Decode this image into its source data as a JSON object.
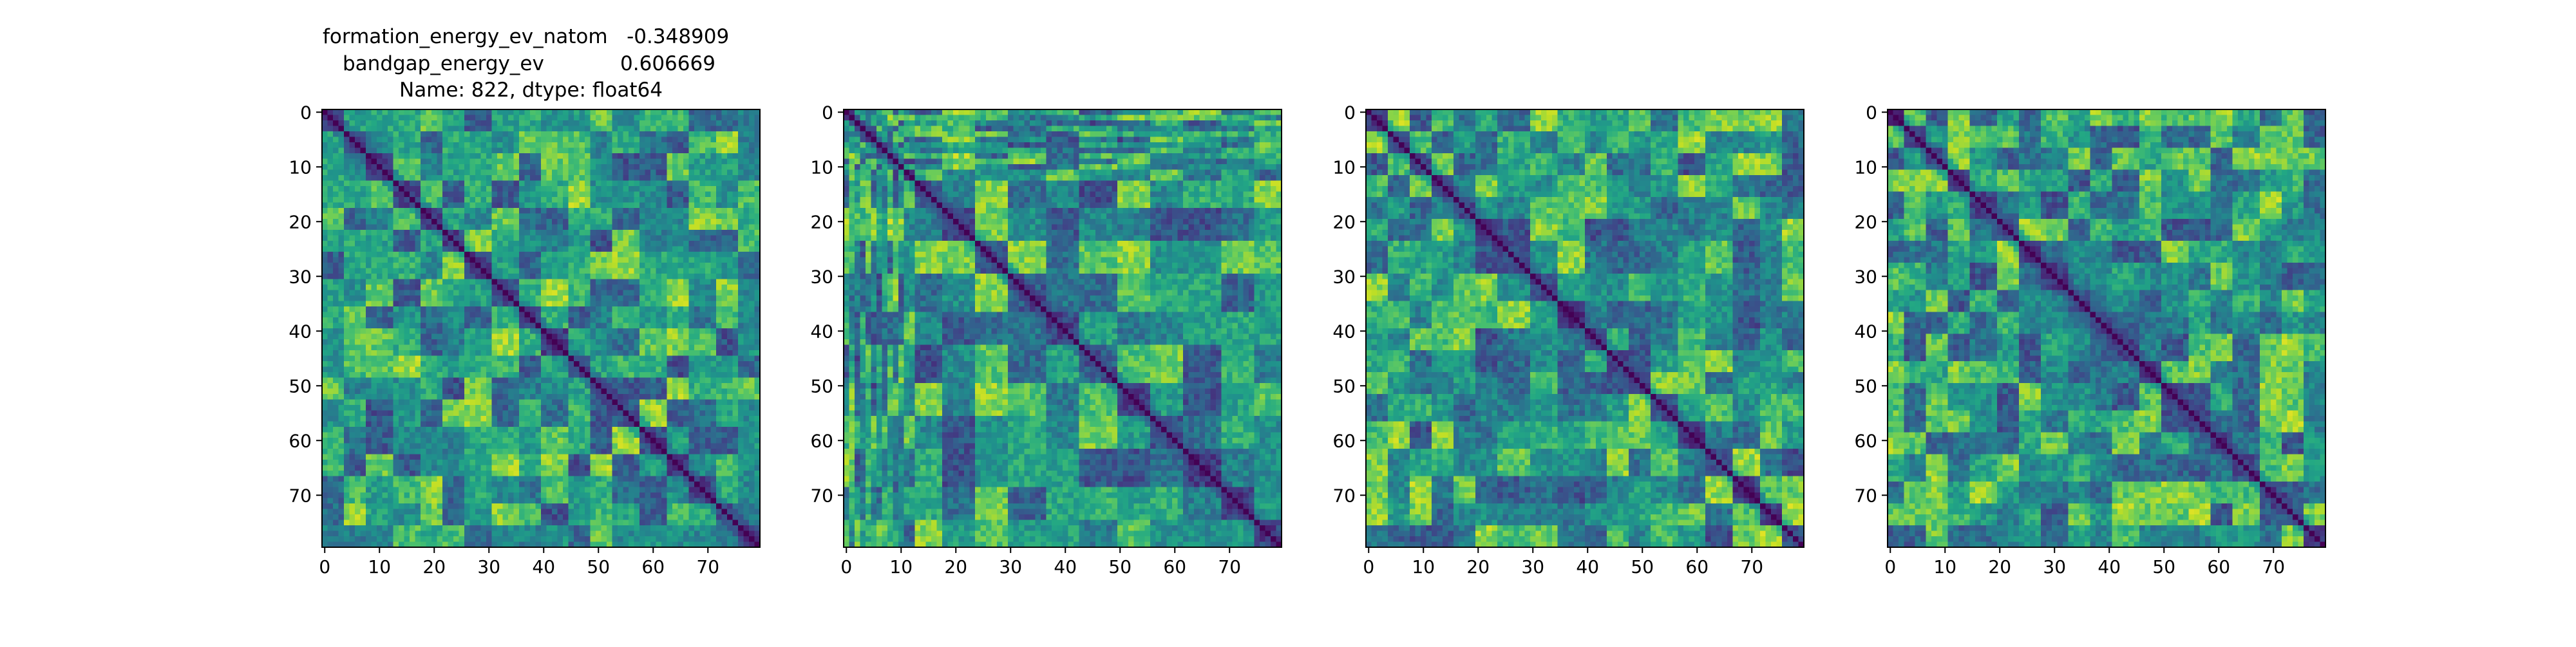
{
  "figure": {
    "title_lines": [
      "formation_energy_ev_natom   -0.348909",
      "bandgap_energy_ev            0.606669",
      "Name: 822, dtype: float64"
    ]
  },
  "chart_data": [
    {
      "type": "heatmap",
      "size": 80,
      "colormap": "viridis",
      "xticks": [
        0,
        10,
        20,
        30,
        40,
        50,
        60,
        70
      ],
      "yticks": [
        0,
        10,
        20,
        30,
        40,
        50,
        60,
        70
      ],
      "xlim": [
        0,
        79
      ],
      "ylim": [
        79,
        0
      ],
      "diagonal_value": 0,
      "block_boundaries": [
        0,
        4,
        8,
        13,
        18,
        22,
        26,
        31,
        36,
        40,
        45,
        49,
        53,
        58,
        63,
        67,
        72,
        76,
        80
      ],
      "seed": 11
    },
    {
      "type": "heatmap",
      "size": 80,
      "colormap": "viridis",
      "xticks": [
        0,
        10,
        20,
        30,
        40,
        50,
        60,
        70
      ],
      "yticks": [
        0,
        10,
        20,
        30,
        40,
        50,
        60,
        70
      ],
      "xlim": [
        0,
        79
      ],
      "ylim": [
        79,
        0
      ],
      "diagonal_value": 0,
      "block_boundaries": [
        0,
        1,
        2,
        3,
        4,
        5,
        6,
        7,
        8,
        9,
        10,
        11,
        13,
        18,
        24,
        30,
        37,
        43,
        50,
        56,
        62,
        69,
        75,
        80
      ],
      "seed": 23
    },
    {
      "type": "heatmap",
      "size": 80,
      "colormap": "viridis",
      "xticks": [
        0,
        10,
        20,
        30,
        40,
        50,
        60,
        70
      ],
      "yticks": [
        0,
        10,
        20,
        30,
        40,
        50,
        60,
        70
      ],
      "xlim": [
        0,
        79
      ],
      "ylim": [
        79,
        0
      ],
      "diagonal_value": 0,
      "block_boundaries": [
        0,
        4,
        8,
        12,
        16,
        20,
        24,
        30,
        35,
        40,
        44,
        48,
        52,
        57,
        62,
        67,
        72,
        76,
        80
      ],
      "seed": 37
    },
    {
      "type": "heatmap",
      "size": 80,
      "colormap": "viridis",
      "xticks": [
        0,
        10,
        20,
        30,
        40,
        50,
        60,
        70
      ],
      "yticks": [
        0,
        10,
        20,
        30,
        40,
        50,
        60,
        70
      ],
      "xlim": [
        0,
        79
      ],
      "ylim": [
        79,
        0
      ],
      "diagonal_value": 0,
      "block_boundaries": [
        0,
        3,
        7,
        11,
        15,
        20,
        24,
        28,
        33,
        37,
        41,
        46,
        50,
        55,
        59,
        63,
        68,
        72,
        76,
        80
      ],
      "seed": 53
    }
  ]
}
